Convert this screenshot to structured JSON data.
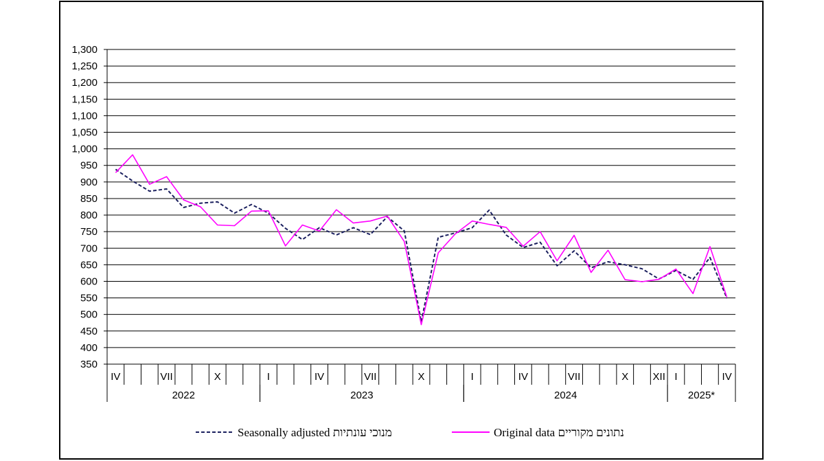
{
  "chart_data": {
    "type": "line",
    "ylim": [
      350,
      1300
    ],
    "yticks": [
      "1,300",
      "1,250",
      "1,200",
      "1,150",
      "1,100",
      "1,050",
      "1,000",
      "950",
      "900",
      "850",
      "800",
      "750",
      "700",
      "650",
      "600",
      "550",
      "500",
      "450",
      "400",
      "350"
    ],
    "month_labels": [
      "IV",
      "",
      "",
      "VII",
      "",
      "",
      "X",
      "",
      "",
      "I",
      "",
      "",
      "IV",
      "",
      "",
      "VII",
      "",
      "",
      "X",
      "",
      "",
      "I",
      "",
      "",
      "IV",
      "",
      "",
      "VII",
      "",
      "",
      "X",
      "",
      "XII",
      "I",
      "",
      "",
      "IV"
    ],
    "years": [
      {
        "label": "2022",
        "start": 0,
        "end": 9
      },
      {
        "label": "2023",
        "start": 9,
        "end": 21
      },
      {
        "label": "2024",
        "start": 21,
        "end": 33
      },
      {
        "label": "2025*",
        "start": 33,
        "end": 37
      }
    ],
    "grid": true,
    "series": [
      {
        "name": "Seasonally adjusted מנוכי עונתיות",
        "color": "#1a1f5e",
        "style": "dashed",
        "values": [
          938,
          903,
          872,
          879,
          823,
          836,
          840,
          806,
          832,
          806,
          760,
          726,
          762,
          740,
          762,
          741,
          795,
          752,
          478,
          733,
          746,
          762,
          815,
          740,
          702,
          718,
          647,
          692,
          641,
          659,
          650,
          638,
          607,
          633,
          606,
          672,
          549
        ]
      },
      {
        "name": "Original data נתונים מקוריים",
        "color": "#ff00ff",
        "style": "solid",
        "values": [
          928,
          982,
          893,
          916,
          846,
          825,
          770,
          768,
          812,
          813,
          707,
          770,
          752,
          816,
          776,
          782,
          797,
          720,
          469,
          686,
          743,
          782,
          772,
          763,
          706,
          750,
          662,
          739,
          627,
          694,
          605,
          599,
          606,
          637,
          563,
          705,
          552
        ]
      }
    ]
  },
  "legend": {
    "adjusted_label": "Seasonally adjusted מנוכי עונתיות",
    "original_label": "Original data נתונים מקוריים"
  }
}
